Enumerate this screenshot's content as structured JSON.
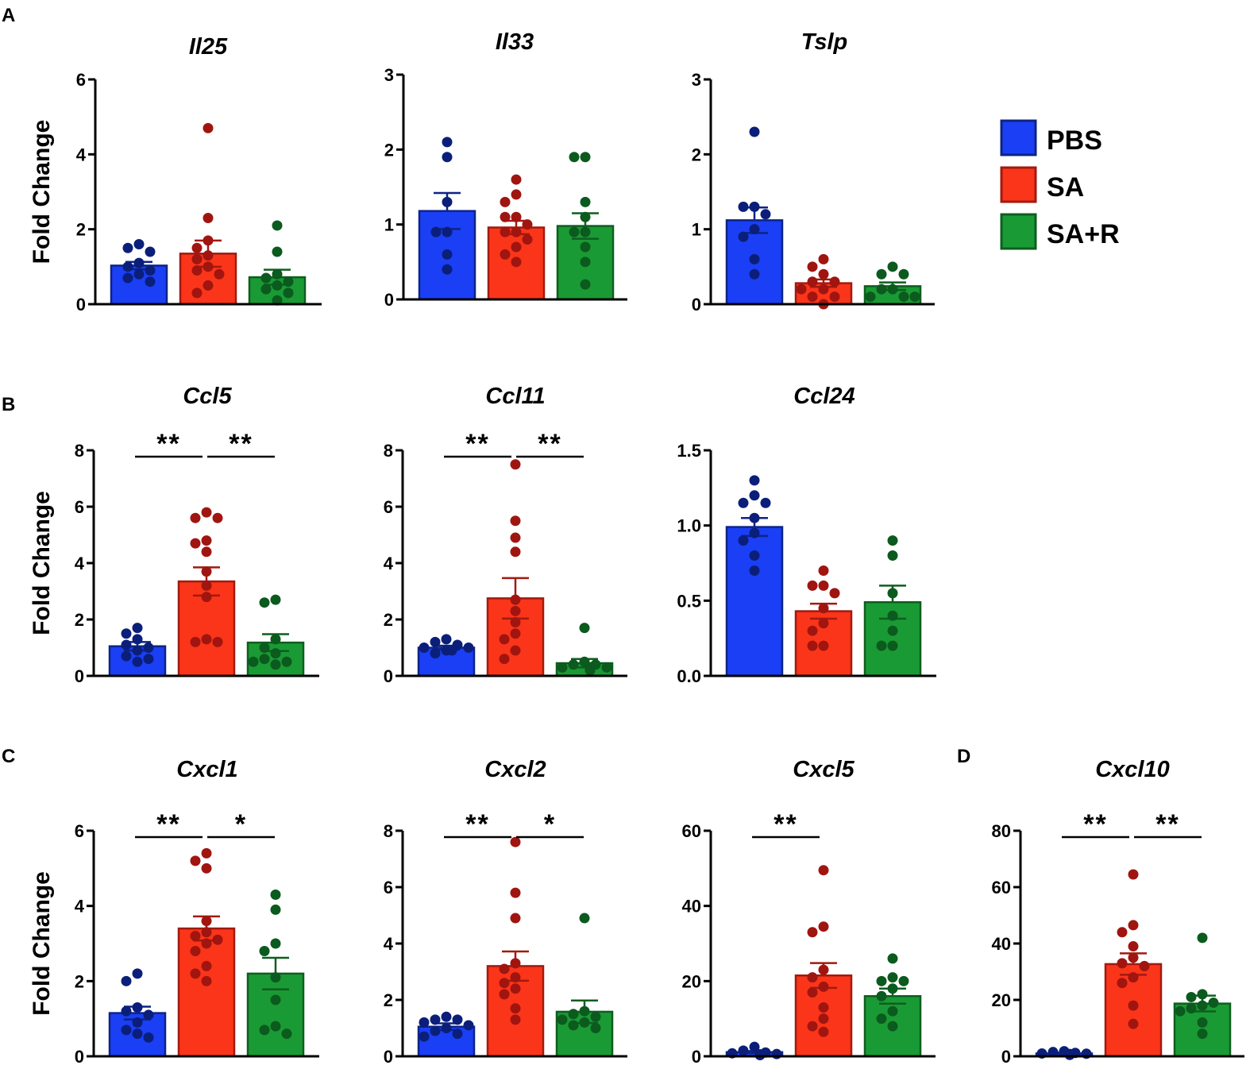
{
  "figure_labels": {
    "A": "A",
    "B": "B",
    "C": "C",
    "D": "D"
  },
  "y_axis_label": "Fold Change",
  "groups": [
    "PBS",
    "SA",
    "SA+R"
  ],
  "colors": {
    "PBS": "#1a3ff5",
    "PBS_dot": "#0b1f7a",
    "PBS_edge": "#0d2486",
    "SA": "#fb3519",
    "SA_dot": "#a01510",
    "SA_edge": "#a11a10",
    "SA+R": "#1a9a34",
    "SA+R_dot": "#0b5a1e",
    "SA+R_edge": "#0e5e1f"
  },
  "legend": [
    {
      "label": "PBS",
      "color": "#1a3ff5"
    },
    {
      "label": "SA",
      "color": "#fb3519"
    },
    {
      "label": "SA+R",
      "color": "#1a9a34"
    }
  ],
  "chart_data": [
    {
      "type": "bar",
      "id": "il25",
      "title": "Il25",
      "panel": "A",
      "ylim": [
        0,
        6
      ],
      "yticks": [
        0,
        2,
        4,
        6
      ],
      "ytick_labels": [
        "0",
        "2",
        "4",
        "6"
      ],
      "ylabel": "Fold Change",
      "categories": [
        "PBS",
        "SA",
        "SA+R"
      ],
      "means": [
        1.03,
        1.35,
        0.72
      ],
      "sem": [
        0.1,
        0.35,
        0.2
      ],
      "points": [
        [
          1.6,
          1.5,
          1.4,
          1.1,
          1.0,
          0.9,
          0.8,
          0.7,
          0.6
        ],
        [
          4.7,
          2.3,
          1.7,
          1.5,
          1.3,
          1.2,
          1.0,
          0.9,
          0.8,
          0.5,
          0.3
        ],
        [
          2.1,
          1.4,
          0.8,
          0.7,
          0.6,
          0.5,
          0.4,
          0.3,
          0.1
        ]
      ],
      "significance": []
    },
    {
      "type": "bar",
      "id": "il33",
      "title": "Il33",
      "panel": "A",
      "ylim": [
        0,
        3
      ],
      "yticks": [
        0,
        1,
        2,
        3
      ],
      "ytick_labels": [
        "0",
        "1",
        "2",
        "3"
      ],
      "ylabel": "",
      "categories": [
        "PBS",
        "SA",
        "SA+R"
      ],
      "means": [
        1.18,
        0.96,
        0.98
      ],
      "sem": [
        0.24,
        0.09,
        0.17
      ],
      "points": [
        [
          2.1,
          1.9,
          1.3,
          0.9,
          0.9,
          0.6,
          0.4
        ],
        [
          1.6,
          1.4,
          1.3,
          1.1,
          1.1,
          1.0,
          0.9,
          0.9,
          0.8,
          0.7,
          0.6,
          0.5
        ],
        [
          1.9,
          1.9,
          1.3,
          1.1,
          0.9,
          0.9,
          0.7,
          0.5,
          0.2
        ]
      ],
      "significance": []
    },
    {
      "type": "bar",
      "id": "tslp",
      "title": "Tslp",
      "panel": "A",
      "ylim": [
        0,
        3
      ],
      "yticks": [
        0,
        1,
        2,
        3
      ],
      "ytick_labels": [
        "0",
        "1",
        "2",
        "3"
      ],
      "ylabel": "",
      "categories": [
        "PBS",
        "SA",
        "SA+R"
      ],
      "means": [
        1.12,
        0.28,
        0.24
      ],
      "sem": [
        0.17,
        0.05,
        0.05
      ],
      "points": [
        [
          2.3,
          1.3,
          1.3,
          1.2,
          1.0,
          0.9,
          0.6,
          0.4
        ],
        [
          0.6,
          0.5,
          0.4,
          0.3,
          0.3,
          0.2,
          0.2,
          0.1,
          0.1,
          0.0
        ],
        [
          0.5,
          0.4,
          0.4,
          0.2,
          0.2,
          0.1,
          0.1,
          0.1
        ]
      ],
      "significance": []
    },
    {
      "type": "bar",
      "id": "ccl5",
      "title": "Ccl5",
      "panel": "B",
      "ylim": [
        0,
        8
      ],
      "yticks": [
        0,
        2,
        4,
        6,
        8
      ],
      "ytick_labels": [
        "0",
        "2",
        "4",
        "6",
        "8"
      ],
      "ylabel": "Fold Change",
      "categories": [
        "PBS",
        "SA",
        "SA+R"
      ],
      "means": [
        1.05,
        3.35,
        1.18
      ],
      "sem": [
        0.15,
        0.5,
        0.3
      ],
      "points": [
        [
          1.7,
          1.5,
          1.3,
          1.1,
          1.0,
          0.9,
          0.7,
          0.6,
          0.5
        ],
        [
          5.8,
          5.6,
          5.6,
          4.8,
          4.7,
          4.4,
          3.7,
          3.2,
          2.8,
          1.3,
          1.2,
          1.2
        ],
        [
          2.7,
          2.6,
          1.3,
          1.0,
          0.8,
          0.6,
          0.5,
          0.5,
          0.4
        ]
      ],
      "significance": [
        {
          "from": 0,
          "to": 1,
          "label": "**"
        },
        {
          "from": 1,
          "to": 2,
          "label": "**"
        }
      ]
    },
    {
      "type": "bar",
      "id": "ccl11",
      "title": "Ccl11",
      "panel": "B",
      "ylim": [
        0,
        8
      ],
      "yticks": [
        0,
        2,
        4,
        6,
        8
      ],
      "ytick_labels": [
        "0",
        "2",
        "4",
        "6",
        "8"
      ],
      "ylabel": "",
      "categories": [
        "PBS",
        "SA",
        "SA+R"
      ],
      "means": [
        1.0,
        2.75,
        0.45
      ],
      "sem": [
        0.07,
        0.72,
        0.15
      ],
      "points": [
        [
          1.3,
          1.2,
          1.1,
          1.0,
          1.0,
          0.9,
          0.9,
          0.8
        ],
        [
          7.5,
          5.5,
          4.9,
          4.4,
          2.7,
          2.3,
          1.9,
          1.5,
          1.3,
          0.9,
          0.6
        ],
        [
          1.7,
          0.5,
          0.4,
          0.4,
          0.3,
          0.3,
          0.3,
          0.2,
          0.2
        ]
      ],
      "significance": [
        {
          "from": 0,
          "to": 1,
          "label": "**"
        },
        {
          "from": 1,
          "to": 2,
          "label": "**"
        }
      ]
    },
    {
      "type": "bar",
      "id": "ccl24",
      "title": "Ccl24",
      "panel": "B",
      "ylim": [
        0,
        1.5
      ],
      "yticks": [
        0,
        0.5,
        1.0,
        1.5
      ],
      "ytick_labels": [
        "0.0",
        "0.5",
        "1.0",
        "1.5"
      ],
      "ylabel": "",
      "categories": [
        "PBS",
        "SA",
        "SA+R"
      ],
      "means": [
        0.99,
        0.43,
        0.49
      ],
      "sem": [
        0.06,
        0.05,
        0.11
      ],
      "points": [
        [
          1.3,
          1.2,
          1.15,
          1.15,
          1.05,
          0.95,
          0.9,
          0.8,
          0.7
        ],
        [
          0.7,
          0.6,
          0.6,
          0.55,
          0.45,
          0.35,
          0.3,
          0.2,
          0.2
        ],
        [
          0.9,
          0.8,
          0.55,
          0.4,
          0.3,
          0.2,
          0.2
        ]
      ],
      "significance": []
    },
    {
      "type": "bar",
      "id": "cxcl1",
      "title": "Cxcl1",
      "panel": "C",
      "ylim": [
        0,
        6
      ],
      "yticks": [
        0,
        2,
        4,
        6
      ],
      "ytick_labels": [
        "0",
        "2",
        "4",
        "6"
      ],
      "ylabel": "Fold Change",
      "categories": [
        "PBS",
        "SA",
        "SA+R"
      ],
      "means": [
        1.15,
        3.4,
        2.2
      ],
      "sem": [
        0.17,
        0.32,
        0.42
      ],
      "points": [
        [
          2.2,
          2.0,
          1.3,
          1.2,
          1.1,
          0.9,
          0.7,
          0.6,
          0.5
        ],
        [
          5.4,
          5.2,
          5.0,
          3.6,
          3.3,
          3.2,
          3.1,
          3.0,
          2.8,
          2.4,
          2.2,
          2.0
        ],
        [
          4.3,
          3.9,
          3.0,
          2.8,
          2.1,
          1.5,
          0.8,
          0.7,
          0.6
        ]
      ],
      "significance": [
        {
          "from": 0,
          "to": 1,
          "label": "**"
        },
        {
          "from": 1,
          "to": 2,
          "label": "*"
        }
      ]
    },
    {
      "type": "bar",
      "id": "cxcl2",
      "title": "Cxcl2",
      "panel": "C",
      "ylim": [
        0,
        8
      ],
      "yticks": [
        0,
        2,
        4,
        6,
        8
      ],
      "ytick_labels": [
        "0",
        "2",
        "4",
        "6",
        "8"
      ],
      "ylabel": "",
      "categories": [
        "PBS",
        "SA",
        "SA+R"
      ],
      "means": [
        1.05,
        3.2,
        1.58
      ],
      "sem": [
        0.12,
        0.52,
        0.4
      ],
      "points": [
        [
          1.4,
          1.3,
          1.3,
          1.2,
          1.1,
          1.0,
          0.9,
          0.8,
          0.7
        ],
        [
          7.6,
          5.8,
          4.9,
          3.3,
          3.1,
          2.8,
          2.6,
          2.4,
          2.2,
          1.7,
          1.3
        ],
        [
          4.9,
          1.6,
          1.5,
          1.4,
          1.3,
          1.2,
          1.1,
          1.0
        ]
      ],
      "significance": [
        {
          "from": 0,
          "to": 1,
          "label": "**"
        },
        {
          "from": 1,
          "to": 2,
          "label": "*"
        }
      ]
    },
    {
      "type": "bar",
      "id": "cxcl5",
      "title": "Cxcl5",
      "panel": "C",
      "ylim": [
        0,
        60
      ],
      "yticks": [
        0,
        20,
        40,
        60
      ],
      "ytick_labels": [
        "0",
        "20",
        "40",
        "60"
      ],
      "ylabel": "",
      "categories": [
        "PBS",
        "SA",
        "SA+R"
      ],
      "means": [
        1.1,
        21.5,
        16.0
      ],
      "sem": [
        0.3,
        3.3,
        2.0
      ],
      "points": [
        [
          2.5,
          1.5,
          1.0,
          0.8,
          0.6,
          0.5,
          0.5,
          0.4,
          0.3
        ],
        [
          49.5,
          34.5,
          33.0,
          23.0,
          21.0,
          18.5,
          17.0,
          13.0,
          10.0,
          8.0,
          6.5
        ],
        [
          26.0,
          21.0,
          20.0,
          20.0,
          18.0,
          16.0,
          12.0,
          10.0,
          8.0
        ]
      ],
      "significance": [
        {
          "from": 0,
          "to": 1,
          "label": "**"
        }
      ]
    },
    {
      "type": "bar",
      "id": "cxcl10",
      "title": "Cxcl10",
      "panel": "D",
      "ylim": [
        0,
        80
      ],
      "yticks": [
        0,
        20,
        40,
        60,
        80
      ],
      "ytick_labels": [
        "0",
        "20",
        "40",
        "60",
        "80"
      ],
      "ylabel": "",
      "categories": [
        "PBS",
        "SA",
        "SA+R"
      ],
      "means": [
        1.0,
        32.7,
        18.7
      ],
      "sem": [
        0.3,
        3.8,
        2.8
      ],
      "points": [
        [
          1.8,
          1.5,
          1.2,
          1.0,
          0.9,
          0.8,
          0.7,
          0.6,
          0.5
        ],
        [
          64.5,
          46.5,
          44.0,
          39.0,
          35.0,
          33.0,
          32.0,
          28.0,
          26.0,
          18.0,
          11.5
        ],
        [
          42.0,
          22.0,
          21.0,
          19.0,
          18.0,
          17.0,
          16.0,
          12.0,
          8.0
        ]
      ],
      "significance": [
        {
          "from": 0,
          "to": 1,
          "label": "**"
        },
        {
          "from": 1,
          "to": 2,
          "label": "**"
        }
      ]
    }
  ]
}
